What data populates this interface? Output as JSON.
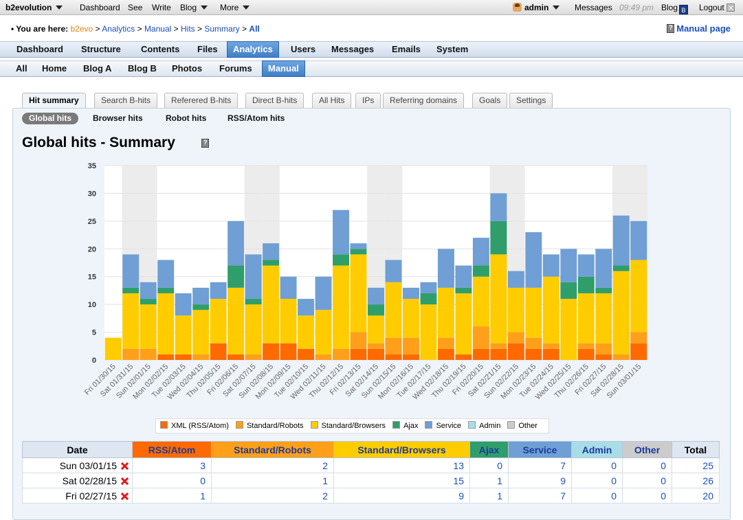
{
  "evobar": {
    "brand": "b2evolution",
    "dashboard": "Dashboard",
    "see": "See",
    "write": "Write",
    "blog": "Blog",
    "more": "More",
    "user": "admin",
    "messages": "Messages",
    "time": "09:49 pm",
    "blog_right": "Blog",
    "blog_badge": "B",
    "logout": "Logout"
  },
  "breadcrumb": {
    "lead": "• You are here:",
    "items": [
      "b2evo",
      "Analytics",
      "Manual",
      "Hits",
      "Summary",
      "All"
    ],
    "sep": ">",
    "manual_page": "Manual page"
  },
  "menu1": [
    "Dashboard",
    "Structure",
    "Contents",
    "Files",
    "Analytics",
    "Users",
    "Messages",
    "Emails",
    "System"
  ],
  "menu2": [
    "All",
    "Home",
    "Blog A",
    "Blog B",
    "Photos",
    "Forums",
    "Manual"
  ],
  "tabs": [
    "Hit summary",
    "Search B-hits",
    "Referered B-hits",
    "Direct B-hits",
    "All Hits",
    "IPs",
    "Referring domains",
    "Goals",
    "Settings"
  ],
  "subtabs": [
    "Global hits",
    "Browser hits",
    "Robot hits",
    "RSS/Atom hits"
  ],
  "page_title": "Global hits - Summary",
  "colors": {
    "xml": "#ff6a00",
    "robots": "#ff9f1a",
    "browsers": "#ffcc00",
    "ajax": "#2f9e6a",
    "service": "#6f9fd4",
    "admin": "#a8dde8",
    "other": "#cccccc"
  },
  "chart_data": {
    "type": "bar",
    "stacked": true,
    "ylim": [
      0,
      35
    ],
    "yticks": [
      0,
      5,
      10,
      15,
      20,
      25,
      30,
      35
    ],
    "grid": true,
    "legend_position": "bottom",
    "categories": [
      "Fri 01/30/15",
      "Sat 01/31/15",
      "Sun 02/01/15",
      "Mon 02/02/15",
      "Tue 02/03/15",
      "Wed 02/04/15",
      "Thu 02/05/15",
      "Fri 02/06/15",
      "Sat 02/07/15",
      "Sun 02/08/15",
      "Mon 02/09/15",
      "Tue 02/10/15",
      "Wed 02/11/15",
      "Thu 02/12/15",
      "Fri 02/13/15",
      "Sat 02/14/15",
      "Sun 02/15/15",
      "Mon 02/16/15",
      "Tue 02/17/15",
      "Wed 02/18/15",
      "Thu 02/19/15",
      "Fri 02/20/15",
      "Sat 02/21/15",
      "Sun 02/22/15",
      "Mon 02/23/15",
      "Tue 02/24/15",
      "Wed 02/25/15",
      "Thu 02/26/15",
      "Fri 02/27/15",
      "Sat 02/28/15",
      "Sun 03/01/15"
    ],
    "weekend": [
      false,
      true,
      true,
      false,
      false,
      false,
      false,
      false,
      true,
      true,
      false,
      false,
      false,
      false,
      false,
      true,
      true,
      false,
      false,
      false,
      false,
      false,
      true,
      true,
      false,
      false,
      false,
      false,
      false,
      true,
      true
    ],
    "series": [
      {
        "name": "XML (RSS/Atom)",
        "color_key": "xml",
        "values": [
          0,
          0,
          0,
          1,
          1,
          0,
          3,
          1,
          0,
          3,
          3,
          2,
          0,
          0,
          2,
          2,
          1,
          1,
          0,
          2,
          1,
          2,
          2,
          3,
          2,
          2,
          0,
          2,
          1,
          0,
          3
        ]
      },
      {
        "name": "Standard/Robots",
        "color_key": "robots",
        "values": [
          0,
          2,
          2,
          0,
          0,
          1,
          0,
          0,
          1,
          0,
          0,
          0,
          1,
          2,
          3,
          1,
          3,
          3,
          0,
          2,
          0,
          4,
          1,
          2,
          2,
          1,
          0,
          1,
          2,
          1,
          2
        ]
      },
      {
        "name": "Standard/Browsers",
        "color_key": "browsers",
        "values": [
          4,
          10,
          8,
          11,
          7,
          8,
          8,
          12,
          9,
          14,
          8,
          6,
          8,
          15,
          14,
          5,
          10,
          7,
          10,
          9,
          11,
          9,
          16,
          8,
          9,
          12,
          11,
          9,
          9,
          15,
          13
        ]
      },
      {
        "name": "Ajax",
        "color_key": "ajax",
        "values": [
          0,
          1,
          1,
          1,
          0,
          1,
          0,
          4,
          1,
          1,
          0,
          0,
          0,
          2,
          1,
          2,
          0,
          0,
          2,
          0,
          1,
          2,
          6,
          0,
          0,
          0,
          3,
          3,
          1,
          1,
          0
        ]
      },
      {
        "name": "Service",
        "color_key": "service",
        "values": [
          0,
          6,
          3,
          5,
          4,
          3,
          3,
          8,
          8,
          3,
          4,
          3,
          6,
          8,
          1,
          3,
          4,
          2,
          2,
          7,
          4,
          5,
          5,
          3,
          10,
          4,
          6,
          4,
          7,
          9,
          7
        ]
      },
      {
        "name": "Admin",
        "color_key": "admin",
        "values": [
          0,
          0,
          0,
          0,
          0,
          0,
          0,
          0,
          0,
          0,
          0,
          0,
          0,
          0,
          0,
          0,
          0,
          0,
          0,
          0,
          0,
          0,
          0,
          0,
          0,
          0,
          0,
          0,
          0,
          0,
          0
        ]
      },
      {
        "name": "Other",
        "color_key": "other",
        "values": [
          0,
          0,
          0,
          0,
          0,
          0,
          0,
          0,
          0,
          0,
          0,
          0,
          0,
          0,
          0,
          0,
          0,
          0,
          0,
          0,
          0,
          0,
          0,
          0,
          0,
          0,
          0,
          0,
          0,
          0,
          0
        ]
      }
    ]
  },
  "table": {
    "headers": [
      "Date",
      "RSS/Atom",
      "Standard/Robots",
      "Standard/Browsers",
      "Ajax",
      "Service",
      "Admin",
      "Other",
      "Total"
    ],
    "rows": [
      {
        "date": "Sun 03/01/15",
        "values": [
          "3",
          "2",
          "13",
          "0",
          "7",
          "0",
          "0",
          "25"
        ]
      },
      {
        "date": "Sat 02/28/15",
        "values": [
          "0",
          "1",
          "15",
          "1",
          "9",
          "0",
          "0",
          "26"
        ]
      },
      {
        "date": "Fri 02/27/15",
        "values": [
          "1",
          "2",
          "9",
          "1",
          "7",
          "0",
          "0",
          "20"
        ]
      }
    ]
  }
}
